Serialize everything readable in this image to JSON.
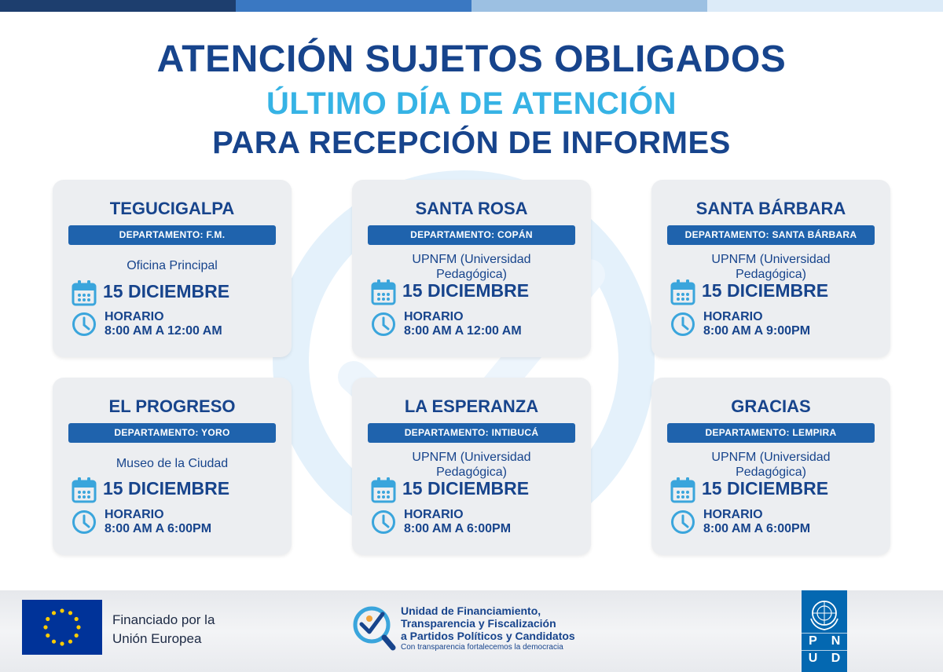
{
  "colors": {
    "navy": "#17448c",
    "cyan": "#36b3e5",
    "dept_bar": "#1f63ad",
    "icon": "#3aa5dc",
    "card_bg": "#eceef1",
    "topbar": [
      "#1d3e6e",
      "#3a78c2",
      "#9cc0e2",
      "#dcebf8"
    ]
  },
  "header": {
    "line1": "ATENCIÓN SUJETOS OBLIGADOS",
    "line2": "ÚLTIMO DÍA DE ATENCIÓN",
    "line3": "PARA RECEPCIÓN DE INFORMES"
  },
  "icons": {
    "calendar": "calendar-icon",
    "clock": "clock-icon"
  },
  "cards": [
    {
      "city": "TEGUCIGALPA",
      "department": "DEPARTAMENTO: F.M.",
      "venue": [
        "Oficina Principal"
      ],
      "date": "15 DICIEMBRE",
      "schedule_label": "HORARIO",
      "schedule_time": "8:00 AM A 12:00 AM"
    },
    {
      "city": "SANTA ROSA",
      "department": "DEPARTAMENTO: COPÁN",
      "venue": [
        "UPNFM (Universidad",
        "Pedagógica)"
      ],
      "date": "15 DICIEMBRE",
      "schedule_label": "HORARIO",
      "schedule_time": "8:00 AM A 12:00 AM"
    },
    {
      "city": "SANTA BÁRBARA",
      "department": "DEPARTAMENTO: SANTA BÁRBARA",
      "venue": [
        "UPNFM (Universidad",
        "Pedagógica)"
      ],
      "date": "15 DICIEMBRE",
      "schedule_label": "HORARIO",
      "schedule_time": "8:00 AM A 9:00PM"
    },
    {
      "city": "EL PROGRESO",
      "department": "DEPARTAMENTO: YORO",
      "venue": [
        "Museo de la Ciudad"
      ],
      "date": "15 DICIEMBRE",
      "schedule_label": "HORARIO",
      "schedule_time": "8:00 AM A 6:00PM"
    },
    {
      "city": "LA ESPERANZA",
      "department": "DEPARTAMENTO: INTIBUCÁ",
      "venue": [
        "UPNFM (Universidad",
        "Pedagógica)"
      ],
      "date": "15 DICIEMBRE",
      "schedule_label": "HORARIO",
      "schedule_time": "8:00 AM A 6:00PM"
    },
    {
      "city": "GRACIAS",
      "department": "DEPARTAMENTO: LEMPIRA",
      "venue": [
        "UPNFM (Universidad",
        "Pedagógica)"
      ],
      "date": "15 DICIEMBRE",
      "schedule_label": "HORARIO",
      "schedule_time": "8:00 AM A 6:00PM"
    }
  ],
  "footer": {
    "eu": {
      "line1": "Financiado por la",
      "line2": "Unión Europea",
      "flag": "eu-flag-icon"
    },
    "unit": {
      "line1": "Unidad de Financiamiento,",
      "line2": "Transparencia y Fiscalización",
      "line3": "a Partidos Políticos y Candidatos",
      "tagline": "Con transparencia fortalecemos la democracia",
      "logo": "magnifier-checkmark-logo"
    },
    "undp": {
      "letters": [
        "P",
        "N",
        "U",
        "D"
      ],
      "emblem": "un-emblem-icon"
    }
  }
}
